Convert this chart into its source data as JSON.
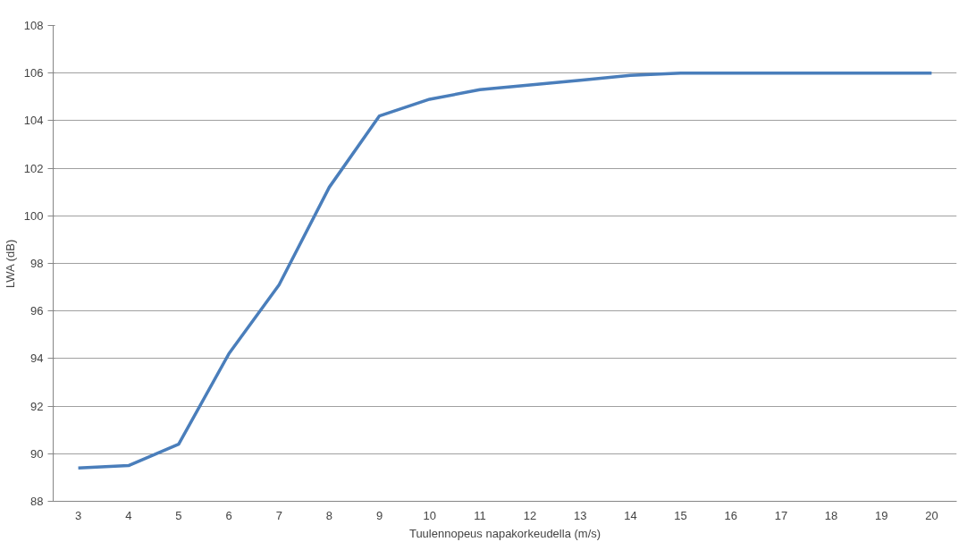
{
  "chart_data": {
    "type": "line",
    "xlabel": "Tuulennopeus napakorkeudella (m/s)",
    "ylabel": "LWA (dB)",
    "categories": [
      "3",
      "4",
      "5",
      "6",
      "7",
      "8",
      "9",
      "10",
      "11",
      "12",
      "13",
      "14",
      "15",
      "16",
      "17",
      "18",
      "19",
      "20"
    ],
    "series": [
      {
        "color": "#4a7ebb",
        "values": [
          89.4,
          89.5,
          90.4,
          94.2,
          97.1,
          101.2,
          104.2,
          104.9,
          105.3,
          105.5,
          105.7,
          105.9,
          106,
          106,
          106,
          106,
          106,
          106
        ]
      }
    ],
    "ylim": [
      88,
      108
    ],
    "yticks": [
      88,
      90,
      92,
      94,
      96,
      98,
      100,
      102,
      104,
      106,
      108
    ],
    "grid": "y",
    "marker": "none",
    "line_style": "solid"
  }
}
